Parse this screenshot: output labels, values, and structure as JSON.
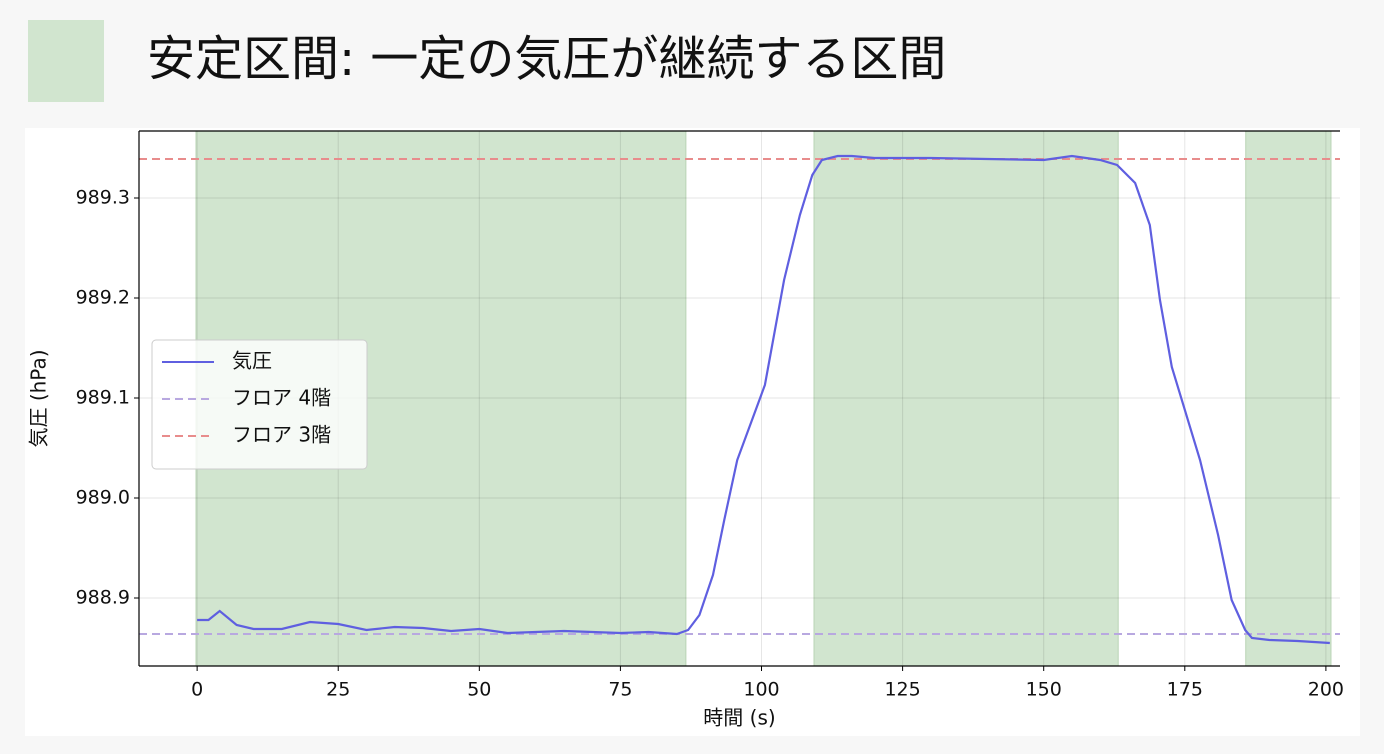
{
  "chart_data": {
    "type": "line",
    "title": "安定区間: 一定の気圧が継続する区間",
    "xlabel": "時間 (s)",
    "ylabel": "気圧 (hPa)",
    "x": [
      0,
      2,
      4,
      7,
      10,
      15,
      20,
      25,
      30,
      35,
      40,
      45,
      50,
      55,
      60,
      65,
      70,
      75,
      80,
      85,
      87,
      89,
      91.4,
      93.4,
      95.7,
      100.6,
      104,
      106.8,
      109,
      110.7,
      113.5,
      116,
      120,
      130,
      140,
      150,
      155,
      160,
      163,
      166.2,
      168.8,
      170.6,
      172.7,
      177.7,
      180.9,
      183.3,
      185.7,
      186.9,
      190,
      195,
      200.7
    ],
    "series": [
      {
        "name": "気圧",
        "color": "#5f5fe0",
        "values": [
          988.878,
          988.878,
          988.887,
          988.873,
          988.869,
          988.869,
          988.876,
          988.874,
          988.868,
          988.871,
          988.87,
          988.867,
          988.869,
          988.865,
          988.866,
          988.867,
          988.866,
          988.865,
          988.866,
          988.864,
          988.868,
          988.883,
          988.923,
          988.978,
          989.038,
          989.113,
          989.218,
          989.283,
          989.323,
          989.338,
          989.342,
          989.342,
          989.34,
          989.34,
          989.339,
          989.338,
          989.342,
          989.338,
          989.333,
          989.315,
          989.273,
          989.198,
          989.131,
          989.038,
          988.963,
          988.898,
          988.868,
          988.86,
          988.858,
          988.857,
          988.855
        ]
      }
    ],
    "hlines": [
      {
        "name": "フロア 4階",
        "value": 988.864,
        "color": "#b8a8e0"
      },
      {
        "name": "フロア 3階",
        "value": 989.339,
        "color": "#e88c8c"
      }
    ],
    "spans": [
      [
        -0.2,
        86.6
      ],
      [
        109.3,
        163.2
      ],
      [
        185.8,
        200.9
      ]
    ],
    "span_color": "#d1e5cf",
    "xlim": [
      -10.3,
      202.5
    ],
    "ylim": [
      988.832,
      989.367
    ],
    "xticks": [
      0,
      25,
      50,
      75,
      100,
      125,
      150,
      175,
      200
    ],
    "yticks": [
      988.9,
      {
        "value": 989,
        "label": "989.0"
      },
      989.1,
      989.2,
      989.3
    ],
    "grid": true,
    "legend": "center left"
  }
}
